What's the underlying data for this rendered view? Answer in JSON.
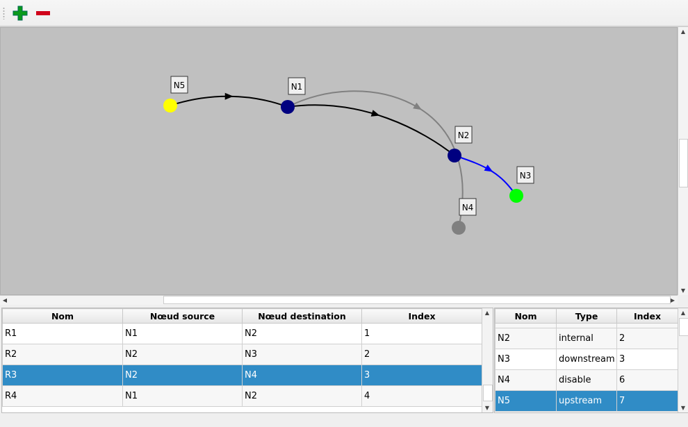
{
  "toolbar": {
    "add_icon": "plus-icon",
    "remove_icon": "minus-icon",
    "add_color": "#0a9a1a",
    "remove_color": "#d0021b"
  },
  "graph": {
    "nodes": [
      {
        "name": "N5",
        "color": "#ffff00"
      },
      {
        "name": "N1",
        "color": "#000080"
      },
      {
        "name": "N2",
        "color": "#000080"
      },
      {
        "name": "N3",
        "color": "#00ff00"
      },
      {
        "name": "N4",
        "color": "#808080"
      }
    ],
    "edges": [
      {
        "from": "N5",
        "to": "N1",
        "color": "#000000"
      },
      {
        "from": "N1",
        "to": "N2",
        "color": "#000000"
      },
      {
        "from": "N1",
        "to": "N4",
        "color": "#808080"
      },
      {
        "from": "N2",
        "to": "N3",
        "color": "#0000ff"
      }
    ]
  },
  "routes_table": {
    "headers": [
      "Nom",
      "Nœud source",
      "Nœud destination",
      "Index"
    ],
    "rows": [
      [
        "R1",
        "N1",
        "N2",
        "1"
      ],
      [
        "R2",
        "N2",
        "N3",
        "2"
      ],
      [
        "R3",
        "N2",
        "N4",
        "3"
      ],
      [
        "R4",
        "N1",
        "N2",
        "4"
      ]
    ],
    "selected_row": 2
  },
  "nodes_table": {
    "headers": [
      "Nom",
      "Type",
      "Index"
    ],
    "rows": [
      [
        "N2",
        "internal",
        "2"
      ],
      [
        "N3",
        "downstream",
        "3"
      ],
      [
        "N4",
        "disable",
        "6"
      ],
      [
        "N5",
        "upstream",
        "7"
      ]
    ],
    "selected_row": 3
  },
  "selection_color": "#308cc6"
}
